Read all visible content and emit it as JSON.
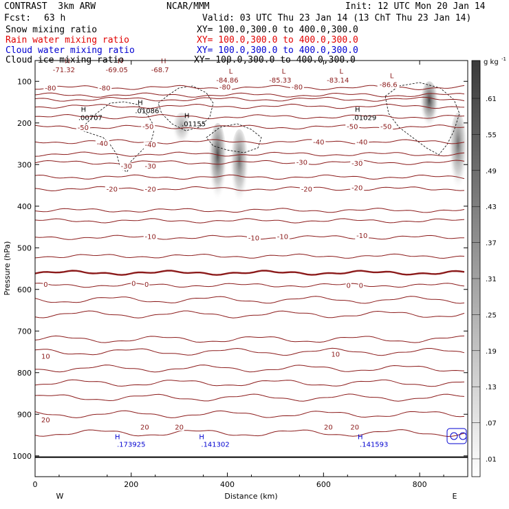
{
  "header": {
    "model": "CONTRAST  3km ARW",
    "org": "NCAR/MMM",
    "init": "Init: 12 UTC Mon 20 Jan 14",
    "fcst_label": "Fcst:",
    "fcst_value": "63 h",
    "valid": "Valid: 03 UTC Thu 23 Jan 14 (13 ChT Thu 23 Jan 14)"
  },
  "fields": [
    {
      "name": "Snow mixing ratio",
      "xy": "XY= 100.0,300.0 to 400.0,300.0",
      "color": "#000000"
    },
    {
      "name": "Rain water mixing ratio",
      "xy": "XY= 100.0,300.0 to 400.0,300.0",
      "color": "#e00000"
    },
    {
      "name": "Cloud water mixing ratio",
      "xy": "XY= 100.0,300.0 to 400.0,300.0",
      "color": "#0000d0"
    },
    {
      "name": "Cloud ice mixing ratio",
      "xy": "XY= 100.0,300.0 to 400.0,300.0",
      "color": "#000000"
    }
  ],
  "colors": {
    "isotherm": "#8b1a1a",
    "cloudwater": "#0000d0",
    "frame": "#000000"
  },
  "chart_data": {
    "type": "heatmap",
    "xlabel": "Distance (km)",
    "ylabel": "Pressure (hPa)",
    "xlim": [
      0,
      900
    ],
    "ylim": [
      1050,
      50
    ],
    "x_ticks": [
      0,
      200,
      400,
      600,
      800
    ],
    "y_ticks": [
      100,
      200,
      300,
      400,
      500,
      600,
      700,
      800,
      900,
      1000
    ],
    "dir_left": "W",
    "dir_right": "E",
    "colorbar": {
      "unit": "g kg",
      "unit_exp": "-1",
      "levels": [
        ".01",
        ".07",
        ".13",
        ".19",
        ".25",
        ".31",
        ".37",
        ".43",
        ".49",
        ".55",
        ".61"
      ]
    },
    "isotherm_labels": [
      {
        "text": "-80",
        "x": 32,
        "p": 115
      },
      {
        "text": "-80",
        "x": 145,
        "p": 115
      },
      {
        "text": "-80",
        "x": 395,
        "p": 113
      },
      {
        "text": "-80",
        "x": 545,
        "p": 113
      },
      {
        "text": "-50",
        "x": 100,
        "p": 210
      },
      {
        "text": "-50",
        "x": 235,
        "p": 208
      },
      {
        "text": "-50",
        "x": 660,
        "p": 208
      },
      {
        "text": "-50",
        "x": 730,
        "p": 208
      },
      {
        "text": "-40",
        "x": 140,
        "p": 248
      },
      {
        "text": "-40",
        "x": 240,
        "p": 252
      },
      {
        "text": "-40",
        "x": 590,
        "p": 245
      },
      {
        "text": "-40",
        "x": 680,
        "p": 245
      },
      {
        "text": "-30",
        "x": 190,
        "p": 303
      },
      {
        "text": "-30",
        "x": 240,
        "p": 303
      },
      {
        "text": "-30",
        "x": 555,
        "p": 294
      },
      {
        "text": "-30",
        "x": 670,
        "p": 296
      },
      {
        "text": "-20",
        "x": 160,
        "p": 358
      },
      {
        "text": "-20",
        "x": 240,
        "p": 358
      },
      {
        "text": "-20",
        "x": 565,
        "p": 358
      },
      {
        "text": "-20",
        "x": 670,
        "p": 355
      },
      {
        "text": "-10",
        "x": 240,
        "p": 472
      },
      {
        "text": "-10",
        "x": 455,
        "p": 476
      },
      {
        "text": "-10",
        "x": 515,
        "p": 472
      },
      {
        "text": "-10",
        "x": 680,
        "p": 470
      },
      {
        "text": "0",
        "x": 22,
        "p": 587
      },
      {
        "text": "0",
        "x": 205,
        "p": 585
      },
      {
        "text": "0",
        "x": 232,
        "p": 587
      },
      {
        "text": "0",
        "x": 652,
        "p": 590
      },
      {
        "text": "0",
        "x": 678,
        "p": 590
      },
      {
        "text": "10",
        "x": 22,
        "p": 760
      },
      {
        "text": "10",
        "x": 625,
        "p": 755
      },
      {
        "text": "20",
        "x": 22,
        "p": 913
      },
      {
        "text": "20",
        "x": 228,
        "p": 930
      },
      {
        "text": "20",
        "x": 300,
        "p": 930
      },
      {
        "text": "20",
        "x": 610,
        "p": 930
      },
      {
        "text": "20",
        "x": 665,
        "p": 930
      }
    ],
    "isotherm_levels_p": [
      115,
      133,
      143,
      160,
      185,
      210,
      245,
      275,
      295,
      330,
      358,
      410,
      435,
      475,
      520,
      560,
      590,
      625,
      660,
      720,
      750,
      790,
      825,
      860,
      900,
      945
    ],
    "min_labels": [
      {
        "mark": "H",
        "value": "-71.32",
        "x": 60,
        "p": 65
      },
      {
        "mark": "H",
        "value": "-69.05",
        "x": 170,
        "p": 65
      },
      {
        "mark": "H",
        "value": "-68.7",
        "x": 260,
        "p": 65
      },
      {
        "mark": "L",
        "value": "-84.86",
        "x": 400,
        "p": 90
      },
      {
        "mark": "L",
        "value": "-85.33",
        "x": 510,
        "p": 90
      },
      {
        "mark": "L",
        "value": "-83.14",
        "x": 630,
        "p": 90
      },
      {
        "mark": "L",
        "value": "-86.6",
        "x": 735,
        "p": 100
      }
    ],
    "ice_maxima": [
      {
        "mark": "H",
        "value": ".00707",
        "x": 115,
        "p": 180
      },
      {
        "mark": "H",
        "value": ".01086",
        "x": 233,
        "p": 163
      },
      {
        "mark": "H",
        "value": ".01155",
        "x": 330,
        "p": 195
      },
      {
        "mark": "H",
        "value": ".01029",
        "x": 685,
        "p": 180
      }
    ],
    "cloudwater_maxima": [
      {
        "mark": "H",
        "value": ".173925",
        "x": 200,
        "p": 980
      },
      {
        "mark": "H",
        "value": ".141302",
        "x": 375,
        "p": 980
      },
      {
        "mark": "H",
        "value": ".141593",
        "x": 705,
        "p": 980
      }
    ],
    "snow_plumes": [
      {
        "x": 305,
        "p_top": 175,
        "p_bot": 265,
        "strength": 0.45
      },
      {
        "x": 380,
        "p_top": 200,
        "p_bot": 420,
        "strength": 0.85
      },
      {
        "x": 425,
        "p_top": 215,
        "p_bot": 425,
        "strength": 0.7
      },
      {
        "x": 820,
        "p_top": 100,
        "p_bot": 230,
        "strength": 0.9
      },
      {
        "x": 880,
        "p_top": 175,
        "p_bot": 395,
        "strength": 0.7
      }
    ]
  }
}
